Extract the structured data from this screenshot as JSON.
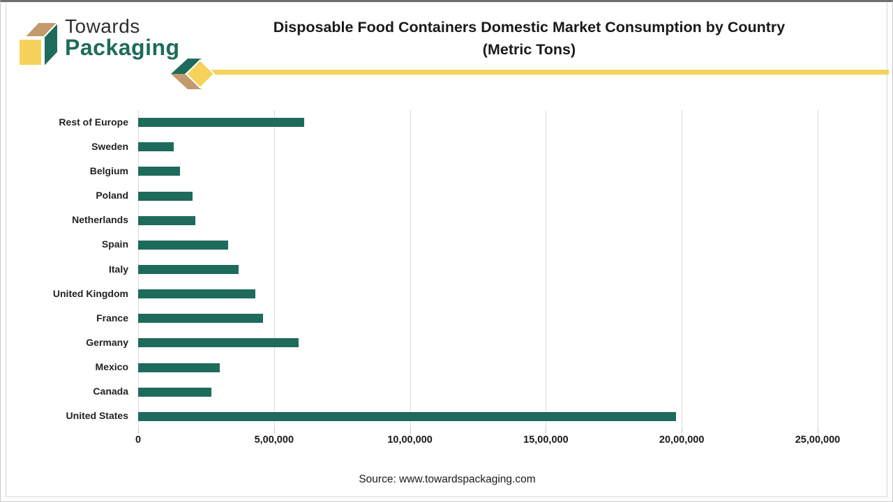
{
  "logo": {
    "line1": "Towards",
    "line2": "Packaging"
  },
  "title": {
    "line1": "Disposable Food Containers Domestic Market Consumption by Country",
    "line2": "(Metric Tons)"
  },
  "source_text": "Source: www.towardspackaging.com",
  "colors": {
    "bar_green": "#1E6B5B",
    "logo_green": "#1E6B5B",
    "accent_yellow": "#F6D25C",
    "accent_tan": "#C39A6B",
    "gridline_gray": "#d9d9d9",
    "text_dark": "#1a1a1a"
  },
  "chart_data": {
    "type": "bar",
    "orientation": "horizontal",
    "title": "Disposable Food Containers Domestic Market Consumption by Country (Metric Tons)",
    "ylabel": "",
    "xlabel": "",
    "unit": "Metric Tons",
    "grid": true,
    "xlim": [
      0,
      2500000
    ],
    "x_tick_values": [
      0,
      500000,
      1000000,
      1500000,
      2000000,
      2500000
    ],
    "x_tick_labels": [
      "0",
      "5,00,000",
      "10,00,000",
      "15,00,000",
      "20,00,000",
      "25,00,000"
    ],
    "categories": [
      "Rest of Europe",
      "Sweden",
      "Belgium",
      "Poland",
      "Netherlands",
      "Spain",
      "Italy",
      "United Kingdom",
      "France",
      "Germany",
      "Mexico",
      "Canada",
      "United States"
    ],
    "values": [
      610000,
      130000,
      155000,
      200000,
      210000,
      330000,
      370000,
      430000,
      460000,
      590000,
      300000,
      270000,
      1980000
    ]
  }
}
